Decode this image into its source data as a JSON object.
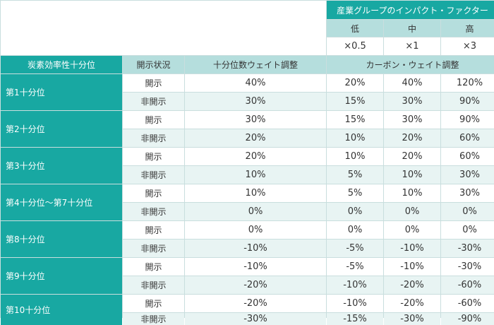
{
  "header": {
    "group_title": "産業グループのインパクト・ファクター",
    "levels": [
      "低",
      "中",
      "高"
    ],
    "factors": [
      "×0.5",
      "×1",
      "×3"
    ],
    "col_decile": "炭素効率性十分位",
    "col_status": "開示状況",
    "col_decile_weight": "十分位数ウェイト調整",
    "col_carbon_weight": "カーボン・ウェイト調整"
  },
  "rows": [
    {
      "decile": "第1十分位",
      "entries": [
        {
          "status": "開示",
          "weight": "40%",
          "low": "20%",
          "mid": "40%",
          "high": "120%"
        },
        {
          "status": "非開示",
          "weight": "30%",
          "low": "15%",
          "mid": "30%",
          "high": "90%"
        }
      ]
    },
    {
      "decile": "第2十分位",
      "entries": [
        {
          "status": "開示",
          "weight": "30%",
          "low": "15%",
          "mid": "30%",
          "high": "90%"
        },
        {
          "status": "非開示",
          "weight": "20%",
          "low": "10%",
          "mid": "20%",
          "high": "60%"
        }
      ]
    },
    {
      "decile": "第3十分位",
      "entries": [
        {
          "status": "開示",
          "weight": "20%",
          "low": "10%",
          "mid": "20%",
          "high": "60%"
        },
        {
          "status": "非開示",
          "weight": "10%",
          "low": "5%",
          "mid": "10%",
          "high": "30%"
        }
      ]
    },
    {
      "decile": "第4十分位～第7十分位",
      "entries": [
        {
          "status": "開示",
          "weight": "10%",
          "low": "5%",
          "mid": "10%",
          "high": "30%"
        },
        {
          "status": "非開示",
          "weight": "0%",
          "low": "0%",
          "mid": "0%",
          "high": "0%"
        }
      ]
    },
    {
      "decile": "第8十分位",
      "entries": [
        {
          "status": "開示",
          "weight": "0%",
          "low": "0%",
          "mid": "0%",
          "high": "0%"
        },
        {
          "status": "非開示",
          "weight": "-10%",
          "low": "-5%",
          "mid": "-10%",
          "high": "-30%"
        }
      ]
    },
    {
      "decile": "第9十分位",
      "entries": [
        {
          "status": "開示",
          "weight": "-10%",
          "low": "-5%",
          "mid": "-10%",
          "high": "-30%"
        },
        {
          "status": "非開示",
          "weight": "-20%",
          "low": "-10%",
          "mid": "-20%",
          "high": "-60%"
        }
      ]
    },
    {
      "decile": "第10十分位",
      "entries": [
        {
          "status": "開示",
          "weight": "-20%",
          "low": "-10%",
          "mid": "-20%",
          "high": "-60%"
        },
        {
          "status": "非開示",
          "weight": "-30%",
          "low": "-15%",
          "mid": "-30%",
          "high": "-90%"
        }
      ]
    }
  ]
}
